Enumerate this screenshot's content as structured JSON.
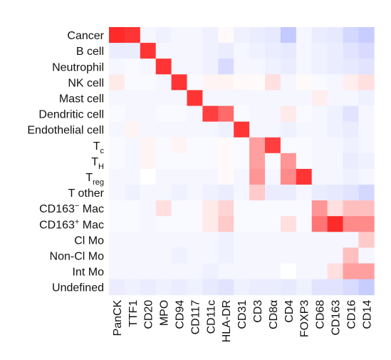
{
  "chart_data": {
    "type": "heatmap",
    "rows": [
      {
        "label": "Cancer"
      },
      {
        "label": "B cell"
      },
      {
        "label": "Neutrophil"
      },
      {
        "label": "NK cell"
      },
      {
        "label": "Mast cell"
      },
      {
        "label": "Dendritic cell"
      },
      {
        "label": "Endothelial cell"
      },
      {
        "label": "T",
        "sub": "c"
      },
      {
        "label": "T",
        "sub": "H"
      },
      {
        "label": "T",
        "sub": "reg"
      },
      {
        "label": "T other"
      },
      {
        "label": "CD163",
        "sup": "−",
        "tail": " Mac"
      },
      {
        "label": "CD163",
        "sup": "+",
        "tail": " Mac"
      },
      {
        "label": "Cl Mo"
      },
      {
        "label": "Non-Cl Mo"
      },
      {
        "label": "Int Mo"
      },
      {
        "label": "Undefined"
      }
    ],
    "columns": [
      "PanCK",
      "TTF1",
      "CD20",
      "MPO",
      "CD94",
      "CD117",
      "CD11c",
      "HLA-DR",
      "CD31",
      "CD3",
      "CD8α",
      "CD4",
      "FOXP3",
      "CD68",
      "CD163",
      "CD16",
      "CD14"
    ],
    "values": [
      [
        1.0,
        0.95,
        -0.05,
        -0.08,
        -0.05,
        -0.05,
        -0.08,
        0.03,
        -0.08,
        -0.1,
        -0.12,
        -0.3,
        -0.05,
        -0.1,
        -0.12,
        -0.22,
        -0.28
      ],
      [
        -0.1,
        -0.1,
        0.95,
        -0.05,
        -0.05,
        -0.05,
        -0.08,
        -0.1,
        -0.05,
        -0.08,
        -0.1,
        -0.12,
        -0.05,
        -0.08,
        -0.1,
        -0.15,
        -0.2
      ],
      [
        -0.05,
        -0.03,
        -0.05,
        0.95,
        -0.05,
        -0.05,
        -0.08,
        -0.2,
        -0.05,
        -0.05,
        -0.08,
        -0.1,
        -0.05,
        -0.08,
        -0.1,
        -0.12,
        -0.15
      ],
      [
        0.1,
        -0.03,
        -0.03,
        -0.05,
        0.95,
        -0.03,
        0.05,
        0.05,
        0.03,
        0.02,
        0.15,
        -0.05,
        0.03,
        -0.03,
        -0.05,
        0.08,
        0.15
      ],
      [
        -0.05,
        -0.05,
        -0.05,
        -0.05,
        -0.05,
        0.95,
        -0.05,
        -0.05,
        -0.05,
        -0.05,
        -0.05,
        -0.05,
        -0.05,
        0.08,
        -0.05,
        -0.05,
        -0.08
      ],
      [
        -0.03,
        -0.05,
        -0.05,
        -0.03,
        -0.03,
        -0.05,
        0.9,
        0.7,
        -0.03,
        -0.05,
        -0.05,
        0.1,
        -0.03,
        -0.05,
        -0.08,
        -0.15,
        -0.05
      ],
      [
        -0.05,
        0.05,
        -0.05,
        -0.05,
        -0.05,
        -0.05,
        -0.05,
        -0.08,
        0.95,
        -0.05,
        -0.05,
        -0.08,
        -0.05,
        -0.05,
        -0.08,
        -0.1,
        -0.05
      ],
      [
        -0.03,
        -0.05,
        0.05,
        -0.03,
        0.05,
        -0.03,
        -0.03,
        0.03,
        -0.03,
        0.45,
        0.9,
        -0.03,
        -0.03,
        -0.05,
        -0.05,
        -0.08,
        -0.05
      ],
      [
        -0.03,
        -0.05,
        0.05,
        -0.03,
        -0.03,
        -0.03,
        -0.03,
        0.03,
        -0.03,
        0.45,
        -0.03,
        0.5,
        -0.03,
        -0.05,
        -0.05,
        -0.1,
        -0.08
      ],
      [
        -0.05,
        -0.05,
        0.0,
        -0.05,
        -0.05,
        -0.05,
        -0.05,
        0.03,
        -0.05,
        0.5,
        -0.05,
        0.55,
        0.95,
        -0.05,
        -0.05,
        -0.08,
        -0.05
      ],
      [
        -0.05,
        -0.08,
        -0.05,
        -0.05,
        -0.08,
        -0.05,
        -0.08,
        -0.1,
        -0.05,
        0.25,
        -0.1,
        -0.1,
        -0.05,
        -0.1,
        -0.12,
        -0.15,
        -0.22
      ],
      [
        -0.03,
        -0.03,
        -0.05,
        0.15,
        -0.03,
        -0.03,
        0.1,
        0.2,
        -0.03,
        -0.03,
        -0.03,
        -0.03,
        -0.03,
        0.5,
        0.15,
        0.3,
        0.3
      ],
      [
        -0.03,
        -0.03,
        -0.05,
        -0.03,
        -0.03,
        -0.03,
        0.1,
        0.25,
        -0.03,
        -0.03,
        -0.03,
        0.15,
        -0.03,
        0.65,
        1.0,
        0.55,
        0.55
      ],
      [
        -0.05,
        -0.05,
        -0.05,
        -0.05,
        -0.05,
        -0.05,
        -0.05,
        -0.08,
        -0.05,
        -0.05,
        -0.05,
        -0.05,
        -0.05,
        -0.05,
        -0.05,
        -0.05,
        0.25
      ],
      [
        -0.05,
        -0.05,
        -0.05,
        -0.05,
        -0.08,
        -0.05,
        -0.05,
        -0.08,
        -0.05,
        -0.05,
        -0.05,
        -0.05,
        -0.05,
        -0.05,
        -0.05,
        0.3,
        -0.05
      ],
      [
        -0.05,
        -0.05,
        -0.05,
        -0.05,
        -0.05,
        -0.05,
        -0.08,
        -0.05,
        -0.05,
        -0.05,
        -0.05,
        0.0,
        -0.05,
        -0.05,
        0.15,
        0.45,
        0.45
      ],
      [
        -0.1,
        -0.08,
        -0.1,
        -0.08,
        -0.1,
        -0.08,
        -0.12,
        -0.15,
        -0.08,
        -0.1,
        -0.1,
        -0.12,
        -0.08,
        -0.15,
        -0.15,
        -0.2,
        -0.28
      ]
    ],
    "value_range": [
      -1,
      1
    ],
    "colors": {
      "positive": "#ff2a2a",
      "neutral": "#ffffff",
      "negative": "#3b4cff"
    },
    "grid": false,
    "legend": "none"
  }
}
